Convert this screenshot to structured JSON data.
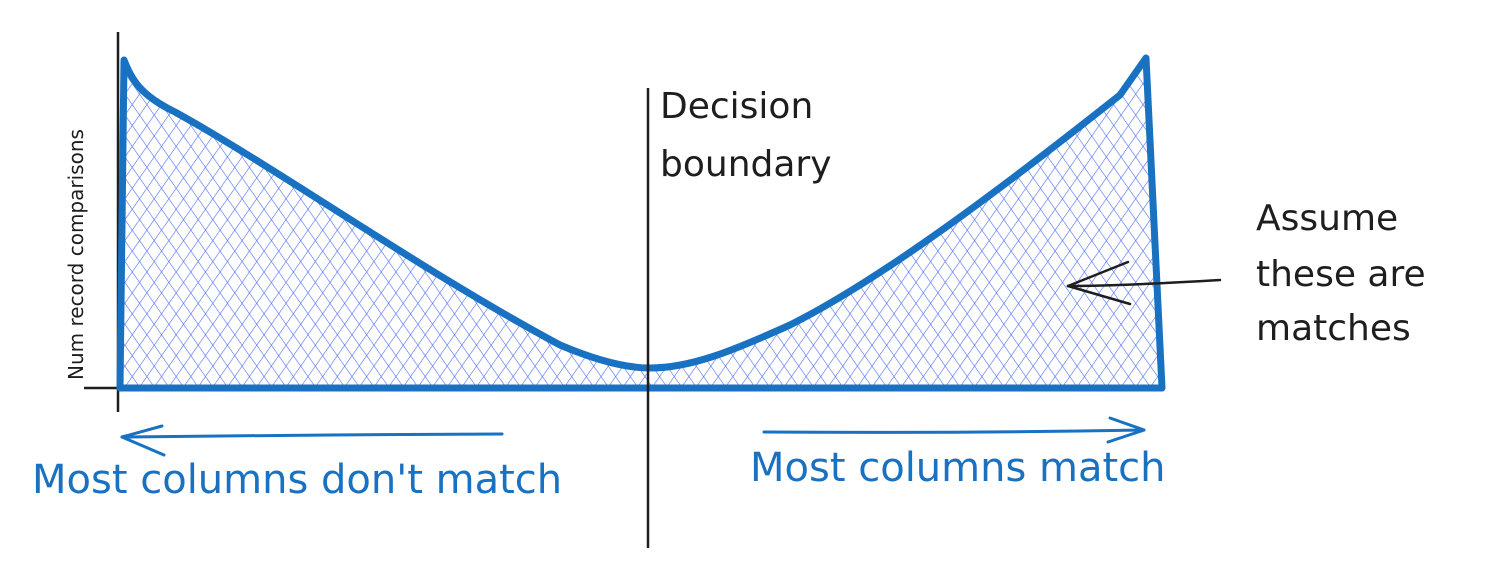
{
  "diagram": {
    "y_axis_label": "Num record comparisons",
    "decision_boundary_label": [
      "Decision",
      "boundary"
    ],
    "annotation_label": [
      "Assume",
      "these are",
      "matches"
    ],
    "left_arrow_label": "Most columns don't match",
    "right_arrow_label": "Most columns match",
    "colors": {
      "ink": "#1e1e1e",
      "curve_stroke": "#1971c2",
      "hatch": "#4c6ef5"
    }
  }
}
